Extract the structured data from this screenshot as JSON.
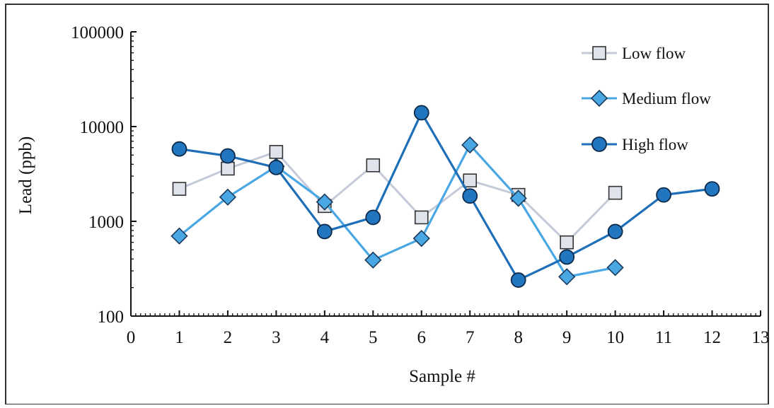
{
  "chart_data": {
    "type": "line",
    "title": "",
    "xlabel": "Sample #",
    "ylabel": "Lead (ppb)",
    "xlim": [
      0,
      13
    ],
    "ylim": [
      100,
      100000
    ],
    "y_scale": "log",
    "x_ticks": [
      0,
      1,
      2,
      3,
      4,
      5,
      6,
      7,
      8,
      9,
      10,
      11,
      12,
      13
    ],
    "y_ticks": [
      100,
      1000,
      10000,
      100000
    ],
    "grid": false,
    "legend_position": "top-right",
    "series": [
      {
        "name": "Low flow",
        "marker": "square",
        "line_color": "#c4cad8",
        "marker_fill": "#dfe3ec",
        "x": [
          1,
          2,
          3,
          4,
          5,
          6,
          7,
          8,
          9,
          10
        ],
        "values": [
          2200,
          3600,
          5400,
          1450,
          3900,
          1100,
          2700,
          1900,
          600,
          2000
        ]
      },
      {
        "name": "Medium flow",
        "marker": "diamond",
        "line_color": "#49a7e3",
        "marker_fill": "#49a7e3",
        "x": [
          1,
          2,
          3,
          4,
          5,
          6,
          7,
          8,
          9,
          10
        ],
        "values": [
          700,
          1800,
          3800,
          1600,
          390,
          660,
          6400,
          1750,
          260,
          325
        ]
      },
      {
        "name": "High flow",
        "marker": "circle",
        "line_color": "#1e6fb7",
        "marker_fill": "#2176bf",
        "x": [
          1,
          2,
          3,
          4,
          5,
          6,
          7,
          8,
          9,
          10,
          11,
          12
        ],
        "values": [
          5800,
          4900,
          3700,
          780,
          1100,
          14000,
          1850,
          240,
          420,
          780,
          1900,
          2200
        ]
      }
    ]
  }
}
